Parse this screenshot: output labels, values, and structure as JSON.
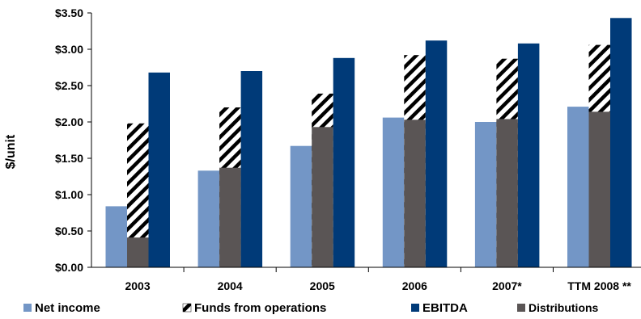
{
  "chart_data": {
    "type": "bar",
    "title": "",
    "xlabel": "",
    "ylabel": "$/unit",
    "ylim": [
      0,
      3.5
    ],
    "ytick_labels": [
      "$0.00",
      "$0.50",
      "$1.00",
      "$1.50",
      "$2.00",
      "$2.50",
      "$3.00",
      "$3.50"
    ],
    "categories": [
      "2003",
      "2004",
      "2005",
      "2006",
      "2007*",
      "TTM 2008 **"
    ],
    "grid": false,
    "legend_position": "bottom",
    "series": [
      {
        "name": "Net income",
        "values": [
          0.84,
          1.33,
          1.67,
          2.06,
          2.0,
          2.21
        ],
        "color": "#7396c6",
        "pattern": "solid"
      },
      {
        "name": "Funds from operations",
        "values": [
          1.98,
          2.2,
          2.39,
          2.92,
          2.87,
          3.06
        ],
        "color": "#000000",
        "pattern": "diagonal-hatch"
      },
      {
        "name": "EBITDA",
        "values": [
          2.68,
          2.7,
          2.88,
          3.12,
          3.08,
          3.43
        ],
        "color": "#003a78",
        "pattern": "solid"
      },
      {
        "name": "Distributions",
        "values": [
          0.41,
          1.37,
          1.93,
          2.03,
          2.04,
          2.14
        ],
        "color": "#5a5555",
        "pattern": "solid"
      }
    ],
    "series_notes": "Distributions are drawn overlaid on the lower part of the Funds from operations bar"
  }
}
